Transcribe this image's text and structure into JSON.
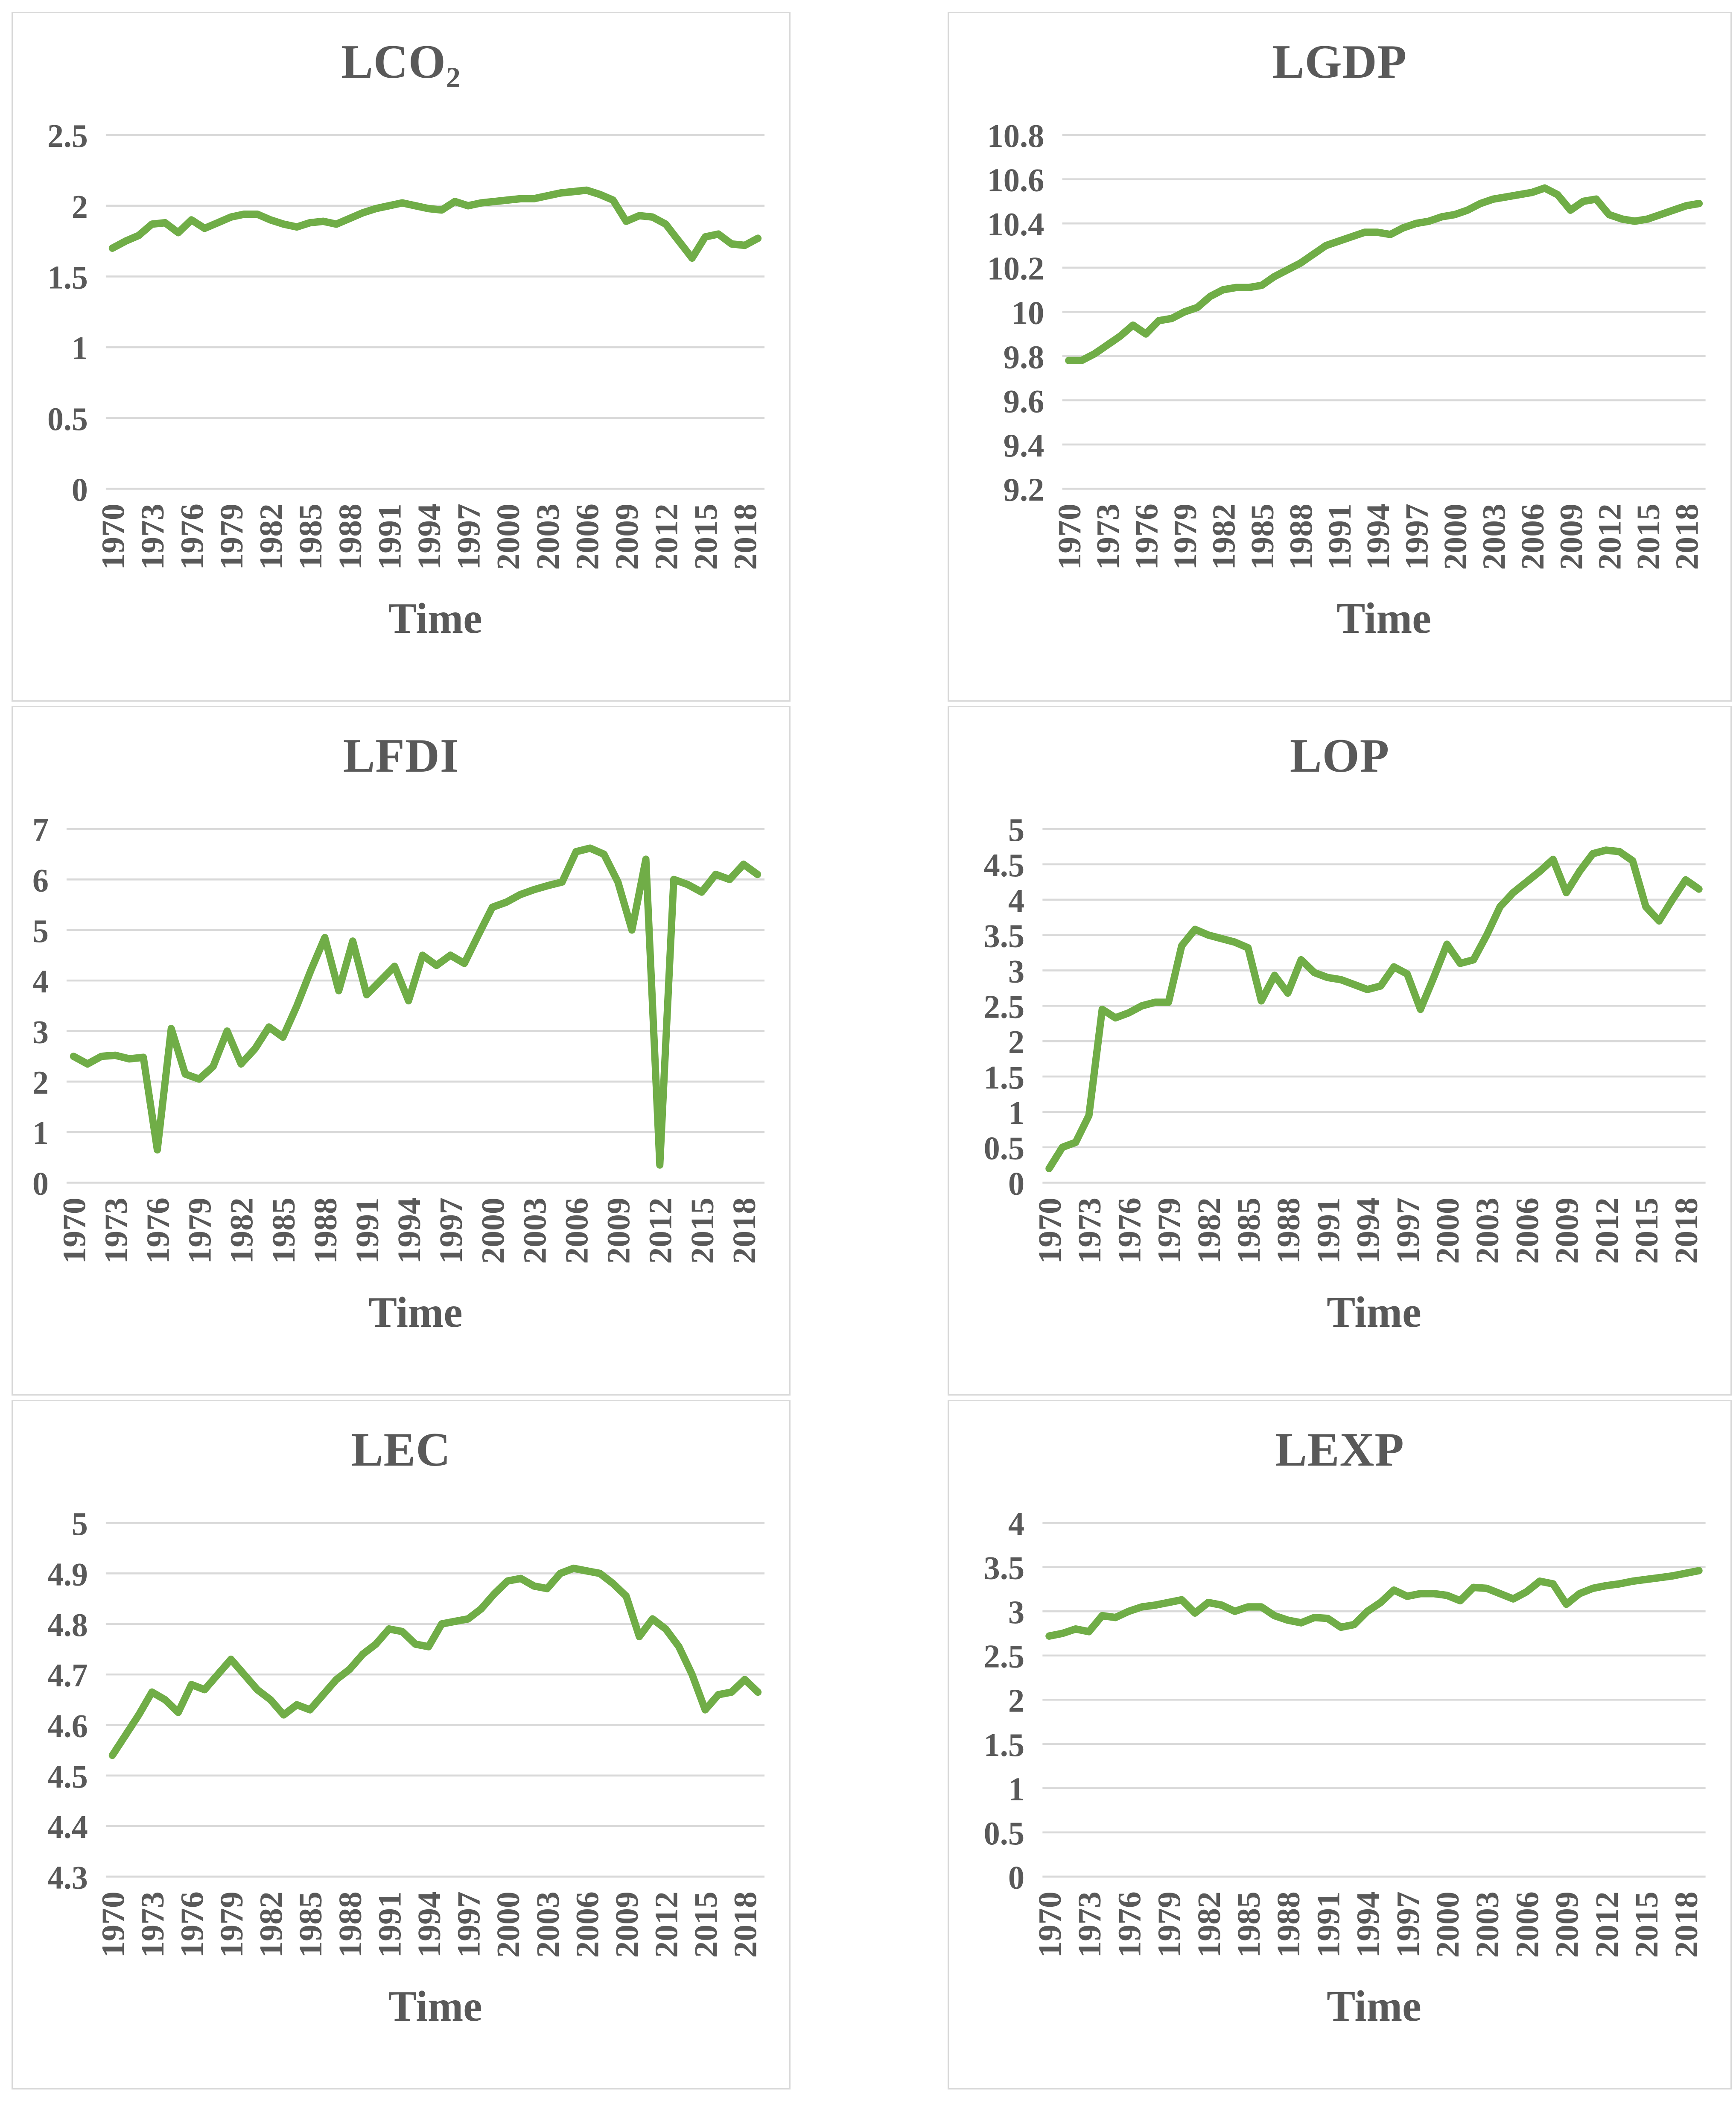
{
  "style": {
    "background": "#FFFFFF",
    "line_color": "#70AD47",
    "grid_color": "#D9D9D9",
    "border_color": "#D9D9D9",
    "text_color": "#595959"
  },
  "time_axis": {
    "label": "Time",
    "x_start": 1970,
    "x_end": 2019,
    "tick_labels": [
      "1970",
      "1973",
      "1976",
      "1979",
      "1982",
      "1985",
      "1988",
      "1991",
      "1994",
      "1997",
      "2000",
      "2003",
      "2006",
      "2009",
      "2012",
      "2015",
      "2018"
    ]
  },
  "chart_data": [
    {
      "type": "line",
      "title_main": "LCO",
      "title_sub": "2",
      "xlabel": "Time",
      "ylim": [
        0,
        2.5
      ],
      "yticks": [
        0,
        0.5,
        1,
        1.5,
        2,
        2.5
      ],
      "ytick_labels": [
        "0",
        "0.5",
        "1",
        "1.5",
        "2",
        "2.5"
      ],
      "grid": true,
      "legend": "none",
      "values": [
        1.7,
        1.75,
        1.79,
        1.87,
        1.88,
        1.81,
        1.9,
        1.84,
        1.88,
        1.92,
        1.94,
        1.94,
        1.9,
        1.87,
        1.85,
        1.88,
        1.89,
        1.87,
        1.91,
        1.95,
        1.98,
        2.0,
        2.02,
        2.0,
        1.98,
        1.97,
        2.03,
        2.0,
        2.02,
        2.03,
        2.04,
        2.05,
        2.05,
        2.07,
        2.09,
        2.1,
        2.11,
        2.08,
        2.04,
        1.89,
        1.93,
        1.92,
        1.87,
        1.75,
        1.63,
        1.78,
        1.8,
        1.73,
        1.72,
        1.77
      ]
    },
    {
      "type": "line",
      "title_main": "LGDP",
      "title_sub": "",
      "xlabel": "Time",
      "ylim": [
        9.2,
        10.8
      ],
      "yticks": [
        9.2,
        9.4,
        9.6,
        9.8,
        10,
        10.2,
        10.4,
        10.6,
        10.8
      ],
      "ytick_labels": [
        "9.2",
        "9.4",
        "9.6",
        "9.8",
        "10",
        "10.2",
        "10.4",
        "10.6",
        "10.8"
      ],
      "grid": true,
      "legend": "none",
      "values": [
        9.78,
        9.78,
        9.81,
        9.85,
        9.89,
        9.94,
        9.9,
        9.96,
        9.97,
        10.0,
        10.02,
        10.07,
        10.1,
        10.11,
        10.11,
        10.12,
        10.16,
        10.19,
        10.22,
        10.26,
        10.3,
        10.32,
        10.34,
        10.36,
        10.36,
        10.35,
        10.38,
        10.4,
        10.41,
        10.43,
        10.44,
        10.46,
        10.49,
        10.51,
        10.52,
        10.53,
        10.54,
        10.56,
        10.53,
        10.46,
        10.5,
        10.51,
        10.44,
        10.42,
        10.41,
        10.42,
        10.44,
        10.46,
        10.48,
        10.49
      ]
    },
    {
      "type": "line",
      "title_main": "LFDI",
      "title_sub": "",
      "xlabel": "Time",
      "ylim": [
        0,
        7
      ],
      "yticks": [
        0,
        1,
        2,
        3,
        4,
        5,
        6,
        7
      ],
      "ytick_labels": [
        "0",
        "1",
        "2",
        "3",
        "4",
        "5",
        "6",
        "7"
      ],
      "grid": true,
      "legend": "none",
      "values": [
        2.5,
        2.35,
        2.5,
        2.52,
        2.45,
        2.48,
        0.65,
        3.05,
        2.15,
        2.05,
        2.3,
        3.0,
        2.35,
        2.65,
        3.08,
        2.88,
        3.5,
        4.2,
        4.85,
        3.8,
        4.78,
        3.72,
        4.0,
        4.28,
        3.6,
        4.5,
        4.3,
        4.5,
        4.34,
        4.9,
        5.45,
        5.55,
        5.7,
        5.8,
        5.88,
        5.95,
        6.55,
        6.62,
        6.5,
        5.95,
        5.0,
        6.4,
        0.35,
        6.0,
        5.9,
        5.75,
        6.1,
        6.0,
        6.3,
        6.1
      ]
    },
    {
      "type": "line",
      "title_main": "LOP",
      "title_sub": "",
      "xlabel": "Time",
      "ylim": [
        0,
        5
      ],
      "yticks": [
        0,
        0.5,
        1,
        1.5,
        2,
        2.5,
        3,
        3.5,
        4,
        4.5,
        5
      ],
      "ytick_labels": [
        "0",
        "0.5",
        "1",
        "1.5",
        "2",
        "2.5",
        "3",
        "3.5",
        "4",
        "4.5",
        "5"
      ],
      "grid": true,
      "legend": "none",
      "values": [
        0.2,
        0.5,
        0.57,
        0.95,
        2.45,
        2.33,
        2.4,
        2.5,
        2.55,
        2.55,
        3.35,
        3.58,
        3.5,
        3.45,
        3.4,
        3.32,
        2.57,
        2.93,
        2.68,
        3.15,
        2.97,
        2.9,
        2.87,
        2.8,
        2.73,
        2.78,
        3.05,
        2.95,
        2.45,
        2.9,
        3.37,
        3.1,
        3.15,
        3.5,
        3.9,
        4.1,
        4.25,
        4.4,
        4.57,
        4.1,
        4.4,
        4.65,
        4.7,
        4.68,
        4.55,
        3.9,
        3.7,
        4.0,
        4.28,
        4.15
      ]
    },
    {
      "type": "line",
      "title_main": "LEC",
      "title_sub": "",
      "xlabel": "Time",
      "ylim": [
        4.3,
        5
      ],
      "yticks": [
        4.3,
        4.4,
        4.5,
        4.6,
        4.7,
        4.8,
        4.9,
        5
      ],
      "ytick_labels": [
        "4.3",
        "4.4",
        "4.5",
        "4.6",
        "4.7",
        "4.8",
        "4.9",
        "5"
      ],
      "grid": true,
      "legend": "none",
      "values": [
        4.54,
        4.58,
        4.62,
        4.665,
        4.65,
        4.625,
        4.68,
        4.67,
        4.7,
        4.73,
        4.7,
        4.67,
        4.65,
        4.62,
        4.64,
        4.63,
        4.66,
        4.69,
        4.71,
        4.74,
        4.76,
        4.79,
        4.785,
        4.76,
        4.755,
        4.8,
        4.805,
        4.81,
        4.83,
        4.86,
        4.885,
        4.89,
        4.875,
        4.87,
        4.9,
        4.91,
        4.905,
        4.9,
        4.88,
        4.855,
        4.775,
        4.81,
        4.79,
        4.755,
        4.7,
        4.63,
        4.66,
        4.665,
        4.69,
        4.665
      ]
    },
    {
      "type": "line",
      "title_main": "LEXP",
      "title_sub": "",
      "xlabel": "Time",
      "ylim": [
        0,
        4
      ],
      "yticks": [
        0,
        0.5,
        1,
        1.5,
        2,
        2.5,
        3,
        3.5,
        4
      ],
      "ytick_labels": [
        "0",
        "0.5",
        "1",
        "1.5",
        "2",
        "2.5",
        "3",
        "3.5",
        "4"
      ],
      "grid": true,
      "legend": "none",
      "values": [
        2.72,
        2.75,
        2.8,
        2.77,
        2.95,
        2.93,
        3.0,
        3.05,
        3.07,
        3.1,
        3.13,
        2.98,
        3.1,
        3.07,
        3.0,
        3.05,
        3.05,
        2.95,
        2.9,
        2.87,
        2.93,
        2.92,
        2.82,
        2.85,
        3.0,
        3.1,
        3.24,
        3.17,
        3.2,
        3.2,
        3.18,
        3.12,
        3.27,
        3.26,
        3.2,
        3.14,
        3.22,
        3.34,
        3.31,
        3.08,
        3.2,
        3.26,
        3.29,
        3.31,
        3.34,
        3.36,
        3.38,
        3.4,
        3.43,
        3.46
      ]
    }
  ]
}
